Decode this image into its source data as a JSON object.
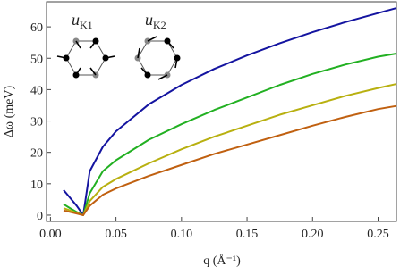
{
  "chart_data": {
    "type": "line",
    "x_label": "q (Å⁻¹)",
    "y_label": "Δω (meV)",
    "annotations": [
      {
        "symbol": "u",
        "subscript": "K1"
      },
      {
        "symbol": "u",
        "subscript": "K2"
      }
    ],
    "x": [
      0.01,
      0.015,
      0.02,
      0.025,
      0.03,
      0.04,
      0.05,
      0.075,
      0.1,
      0.125,
      0.15,
      0.175,
      0.2,
      0.225,
      0.25,
      0.264
    ],
    "series": [
      {
        "color": "#1414a0",
        "values": [
          8,
          5.5,
          3,
          0,
          14,
          21.8,
          26.7,
          35.3,
          41.5,
          46.6,
          50.9,
          54.8,
          58.3,
          61.5,
          64.4,
          66
        ]
      },
      {
        "color": "#22b022",
        "values": [
          3.5,
          2.2,
          1,
          0,
          7,
          14,
          17.5,
          24,
          29,
          33.5,
          37.5,
          41.5,
          45,
          48,
          50.5,
          51.5
        ]
      },
      {
        "color": "#b8b010",
        "values": [
          2.2,
          1.5,
          0.7,
          0,
          4.5,
          9,
          11.5,
          16.5,
          21,
          25,
          28.5,
          32,
          35,
          38,
          40.5,
          41.8
        ]
      },
      {
        "color": "#c06010",
        "values": [
          1.5,
          1,
          0.5,
          0,
          3,
          6.5,
          8.5,
          12.5,
          16,
          19.5,
          22.5,
          25.5,
          28.5,
          31.3,
          33.8,
          34.8
        ]
      }
    ],
    "xlim": [
      -0.003,
      0.264
    ],
    "ylim": [
      -2,
      68
    ],
    "xticks": [
      {
        "value": 0,
        "label": "0.00"
      },
      0.05,
      {
        "value": 0.1,
        "label": "0.10"
      },
      0.15,
      {
        "value": 0.2,
        "label": "0.20"
      },
      0.25
    ],
    "yticks": [
      0,
      10,
      20,
      30,
      40,
      50,
      60
    ]
  }
}
